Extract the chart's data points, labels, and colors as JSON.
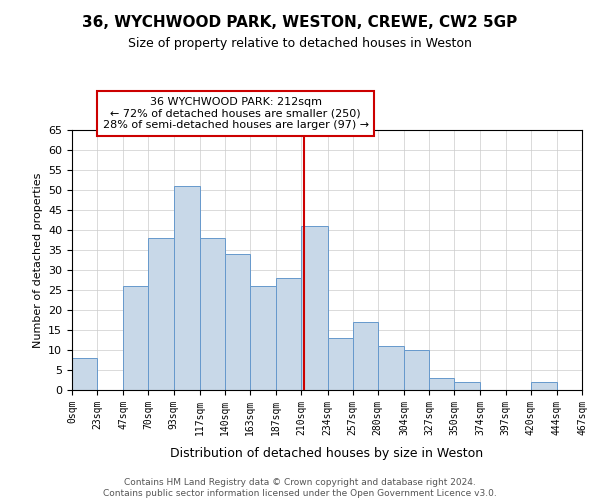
{
  "title": "36, WYCHWOOD PARK, WESTON, CREWE, CW2 5GP",
  "subtitle": "Size of property relative to detached houses in Weston",
  "xlabel": "Distribution of detached houses by size in Weston",
  "ylabel": "Number of detached properties",
  "bin_edges": [
    0,
    23,
    47,
    70,
    93,
    117,
    140,
    163,
    187,
    210,
    234,
    257,
    280,
    304,
    327,
    350,
    374,
    397,
    420,
    444,
    467
  ],
  "bin_labels": [
    "0sqm",
    "23sqm",
    "47sqm",
    "70sqm",
    "93sqm",
    "117sqm",
    "140sqm",
    "163sqm",
    "187sqm",
    "210sqm",
    "234sqm",
    "257sqm",
    "280sqm",
    "304sqm",
    "327sqm",
    "350sqm",
    "374sqm",
    "397sqm",
    "420sqm",
    "444sqm",
    "467sqm"
  ],
  "counts": [
    8,
    0,
    26,
    38,
    51,
    38,
    34,
    26,
    28,
    41,
    13,
    17,
    11,
    10,
    3,
    2,
    0,
    0,
    2,
    0
  ],
  "bar_color": "#c8d8e8",
  "bar_edge_color": "#6699cc",
  "property_line_x": 212,
  "property_line_color": "#cc0000",
  "annotation_title": "36 WYCHWOOD PARK: 212sqm",
  "annotation_line1": "← 72% of detached houses are smaller (250)",
  "annotation_line2": "28% of semi-detached houses are larger (97) →",
  "annotation_box_color": "#ffffff",
  "annotation_box_edge": "#cc0000",
  "ylim": [
    0,
    65
  ],
  "yticks": [
    0,
    5,
    10,
    15,
    20,
    25,
    30,
    35,
    40,
    45,
    50,
    55,
    60,
    65
  ],
  "footer_line1": "Contains HM Land Registry data © Crown copyright and database right 2024.",
  "footer_line2": "Contains public sector information licensed under the Open Government Licence v3.0.",
  "background_color": "#ffffff",
  "grid_color": "#cccccc"
}
